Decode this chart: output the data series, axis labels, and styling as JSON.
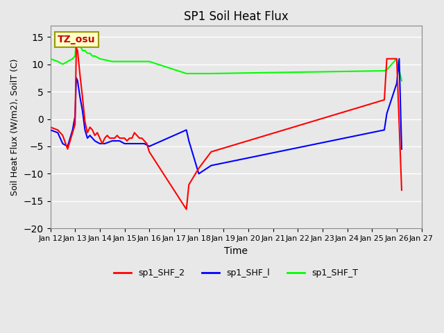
{
  "title": "SP1 Soil Heat Flux",
  "xlabel": "Time",
  "ylabel": "Soil Heat Flux (W/m2), SoilT (C)",
  "ylim": [
    -20,
    17
  ],
  "yticks": [
    -20,
    -15,
    -10,
    -5,
    0,
    5,
    10,
    15
  ],
  "bg_color": "#e8e8e8",
  "plot_bg_color": "#e8e8e8",
  "grid_color": "white",
  "tz_label": "TZ_osu",
  "tz_box_color": "#ffffcc",
  "tz_text_color": "#cc0000",
  "legend": [
    "sp1_SHF_2",
    "sp1_SHF_l",
    "sp1_SHF_T"
  ],
  "line_colors": [
    "#ff0000",
    "#0000ff",
    "#00ff00"
  ],
  "x_tick_labels": [
    "Jan 12",
    "Jan 13",
    "Jan 14",
    "Jan 15",
    "Jan 16",
    "Jan 17",
    "Jan 18",
    "Jan 19",
    "Jan 20",
    "Jan 21",
    "Jan 22",
    "Jan 23",
    "Jan 24",
    "Jan 25",
    "Jan 26",
    "Jan 27"
  ],
  "num_days": 16,
  "spf2_x": [
    0,
    0.3,
    0.5,
    0.7,
    0.9,
    1.0,
    1.05,
    1.1,
    1.2,
    1.3,
    1.4,
    1.5,
    1.6,
    1.7,
    1.8,
    1.9,
    2.0,
    2.1,
    2.2,
    2.3,
    2.4,
    2.5,
    2.6,
    2.7,
    2.8,
    2.9,
    3.0,
    3.1,
    3.2,
    3.3,
    3.4,
    3.5,
    3.6,
    3.7,
    3.8,
    3.9,
    4.0,
    5.5,
    5.6,
    6.0,
    6.5,
    13.5,
    13.6,
    14.0,
    14.2
  ],
  "spf2_y": [
    -1.5,
    -2.0,
    -3.0,
    -5.5,
    -2.5,
    -1.0,
    13.0,
    12.5,
    8.0,
    4.0,
    -0.5,
    -2.5,
    -1.5,
    -2.0,
    -3.0,
    -2.5,
    -3.5,
    -4.5,
    -3.5,
    -3.0,
    -3.5,
    -3.5,
    -3.5,
    -3.0,
    -3.5,
    -3.5,
    -3.5,
    -4.0,
    -3.5,
    -3.5,
    -2.5,
    -3.0,
    -3.5,
    -3.5,
    -4.0,
    -4.5,
    -6.0,
    -16.5,
    -12.0,
    -9.0,
    -6.0,
    3.5,
    11.0,
    11.0,
    -13.0
  ],
  "spf1_x": [
    0,
    0.3,
    0.5,
    0.7,
    0.9,
    1.0,
    1.05,
    1.1,
    1.2,
    1.3,
    1.4,
    1.5,
    1.6,
    1.7,
    1.8,
    2.0,
    2.2,
    2.5,
    2.8,
    3.0,
    3.2,
    3.5,
    3.8,
    4.0,
    5.5,
    5.6,
    6.0,
    6.5,
    13.5,
    13.6,
    14.0,
    14.1,
    14.2
  ],
  "spf1_y": [
    -2.0,
    -2.5,
    -4.5,
    -5.0,
    -2.0,
    0.5,
    7.5,
    7.0,
    4.0,
    1.5,
    -2.0,
    -3.5,
    -3.0,
    -3.5,
    -4.0,
    -4.5,
    -4.5,
    -4.0,
    -4.0,
    -4.5,
    -4.5,
    -4.5,
    -4.5,
    -5.0,
    -2.0,
    -4.0,
    -10.0,
    -8.5,
    -2.0,
    1.0,
    6.5,
    11.0,
    -5.5
  ],
  "spft_x": [
    0,
    0.3,
    0.5,
    0.7,
    0.9,
    1.0,
    1.05,
    1.1,
    1.2,
    1.3,
    1.4,
    1.5,
    1.6,
    1.7,
    1.8,
    2.0,
    2.5,
    3.0,
    3.5,
    4.0,
    5.5,
    5.6,
    6.0,
    6.5,
    13.5,
    13.6,
    14.0,
    14.2
  ],
  "spft_y": [
    11.0,
    10.5,
    10.0,
    10.5,
    11.0,
    11.5,
    14.5,
    14.0,
    13.5,
    12.5,
    12.5,
    12.0,
    12.0,
    11.5,
    11.5,
    11.0,
    10.5,
    10.5,
    10.5,
    10.5,
    8.3,
    8.3,
    8.3,
    8.3,
    8.8,
    9.0,
    11.0,
    7.0
  ]
}
